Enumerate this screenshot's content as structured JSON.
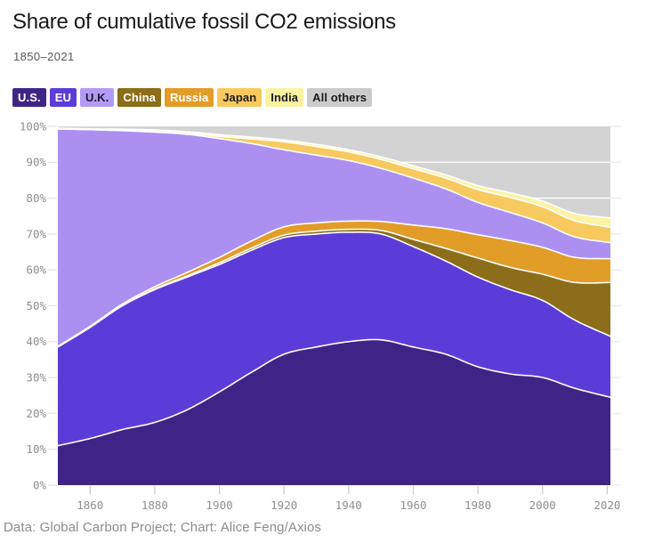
{
  "header": {
    "title": "Share of cumulative fossil CO2 emissions",
    "subtitle": "1850–2021"
  },
  "legend": {
    "items": [
      {
        "slug": "us",
        "label": "U.S.",
        "color": "#3f2487",
        "text_color": "#ffffff"
      },
      {
        "slug": "eu",
        "label": "EU",
        "color": "#5c3cd9",
        "text_color": "#ffffff"
      },
      {
        "slug": "uk",
        "label": "U.K.",
        "color": "#b29bf5",
        "text_color": "#1c1c2e"
      },
      {
        "slug": "china",
        "label": "China",
        "color": "#8c6d19",
        "text_color": "#ffffff"
      },
      {
        "slug": "russia",
        "label": "Russia",
        "color": "#e29c28",
        "text_color": "#ffffff"
      },
      {
        "slug": "japan",
        "label": "Japan",
        "color": "#f8c95f",
        "text_color": "#1c1c1c"
      },
      {
        "slug": "india",
        "label": "India",
        "color": "#fbf2a3",
        "text_color": "#1c1c1c"
      },
      {
        "slug": "all-others",
        "label": "All others",
        "color": "#cbcbcb",
        "text_color": "#1c1c1c"
      }
    ]
  },
  "chart_data": {
    "type": "area",
    "stacked": true,
    "unit": "percent share, 0-100",
    "title": "Share of cumulative fossil CO2 emissions",
    "x": [
      1850,
      1860,
      1870,
      1880,
      1890,
      1900,
      1910,
      1920,
      1930,
      1940,
      1950,
      1960,
      1970,
      1980,
      1990,
      2000,
      2010,
      2021
    ],
    "series": [
      {
        "name": "U.S.",
        "slug": "us",
        "color": "#3f2487",
        "values": [
          11,
          13,
          15.5,
          17.5,
          21,
          26,
          31.5,
          36.5,
          38.5,
          40,
          40.5,
          38.5,
          36.5,
          33,
          31,
          30,
          27,
          24.5
        ]
      },
      {
        "name": "EU",
        "slug": "eu",
        "color": "#5c3cd9",
        "values": [
          27.5,
          31,
          34.5,
          37,
          37,
          35.5,
          34,
          32.5,
          31.5,
          30.5,
          29.5,
          28,
          26,
          25,
          23.5,
          21.5,
          19,
          17
        ]
      },
      {
        "name": "China",
        "slug": "china",
        "color": "#8c6d19",
        "values": [
          0,
          0,
          0.1,
          0.2,
          0.3,
          0.5,
          0.6,
          0.7,
          0.8,
          0.8,
          1,
          2,
          3.5,
          5.3,
          6.2,
          7.3,
          10.5,
          15
        ]
      },
      {
        "name": "Russia",
        "slug": "russia",
        "color": "#e29c28",
        "values": [
          0.2,
          0.3,
          0.4,
          0.6,
          1,
          1.5,
          2,
          2.3,
          2.3,
          2.3,
          2.5,
          4,
          5.5,
          6.5,
          7.5,
          7.5,
          7,
          6.6
        ]
      },
      {
        "name": "U.K.",
        "slug": "uk",
        "color": "#ab90f2",
        "values": [
          60.6,
          54.8,
          48.3,
          43.1,
          38.5,
          33.1,
          27.1,
          21.5,
          18.9,
          16.9,
          14.8,
          13.1,
          11.1,
          9,
          7.8,
          6.8,
          5.7,
          4.5
        ]
      },
      {
        "name": "Japan",
        "slug": "japan",
        "color": "#f8c95f",
        "values": [
          0,
          0,
          0.1,
          0.2,
          0.3,
          0.6,
          1.3,
          2.2,
          2.4,
          2.4,
          2.5,
          2.6,
          3,
          3.6,
          4.2,
          4.5,
          4.5,
          4.3
        ]
      },
      {
        "name": "India",
        "slug": "india",
        "color": "#fbf2a3",
        "values": [
          0.2,
          0.2,
          0.3,
          0.4,
          0.4,
          0.5,
          0.5,
          0.5,
          0.6,
          0.6,
          0.7,
          0.8,
          0.9,
          1.1,
          1.3,
          1.6,
          2,
          2.6
        ]
      },
      {
        "name": "All others",
        "slug": "all-others",
        "color": "#d3d3d3",
        "values": [
          0.5,
          0.7,
          0.8,
          1,
          1.5,
          2.3,
          3,
          3.8,
          5,
          6.5,
          8.5,
          11,
          13.5,
          16.5,
          18.5,
          20.8,
          24.3,
          25.5
        ]
      }
    ],
    "stack_order_bottom_to_top": [
      "U.S.",
      "EU",
      "China",
      "Russia",
      "U.K.",
      "Japan",
      "India",
      "All others"
    ],
    "ylim": [
      0,
      100
    ],
    "y_ticks": [
      "0%",
      "10%",
      "20%",
      "30%",
      "40%",
      "50%",
      "60%",
      "70%",
      "80%",
      "90%",
      "100%"
    ],
    "x_ticks": [
      1860,
      1880,
      1900,
      1920,
      1940,
      1960,
      1980,
      2000,
      2020
    ],
    "grid": "horizontal lines every 10%, white over top band, stub ticks in margins",
    "separator_color": "#ffffff",
    "legend_position": "top-left, inline chips"
  },
  "footer": {
    "caption": "Data: Global Carbon Project; Chart: Alice Feng/Axios"
  }
}
